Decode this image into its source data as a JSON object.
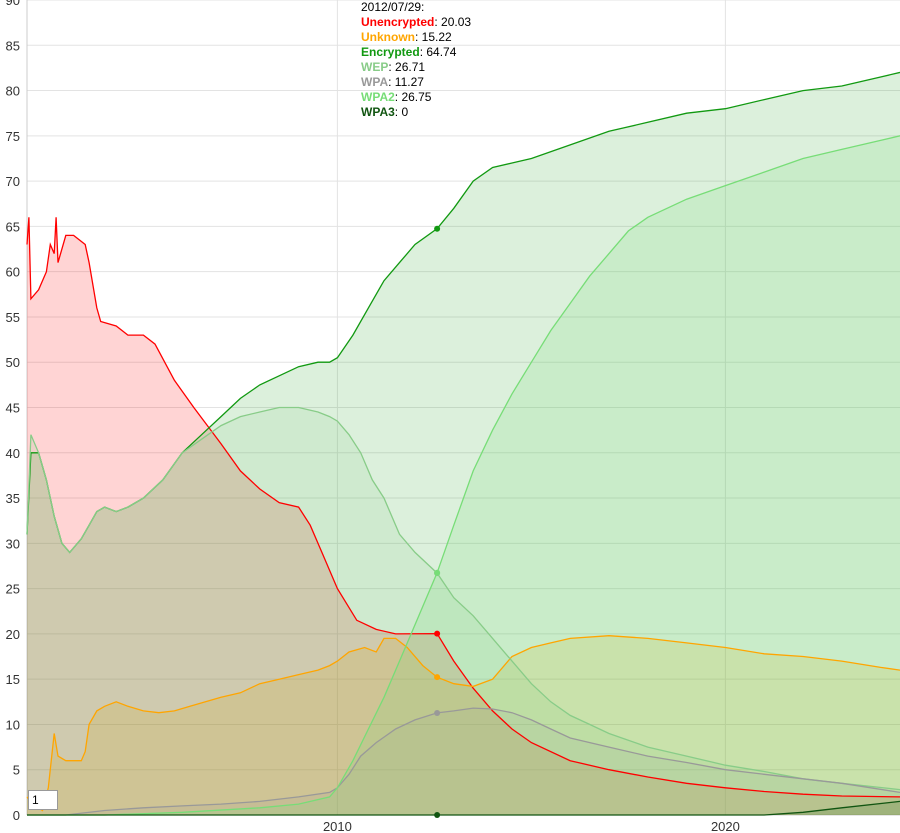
{
  "legend": {
    "date": "2012/07/29:",
    "rows": [
      {
        "name": "Unencrypted",
        "value": "20.03",
        "color": "#ff0000"
      },
      {
        "name": "Unknown",
        "value": "15.22",
        "color": "#ffa500"
      },
      {
        "name": "Encrypted",
        "value": "64.74",
        "color": "#119911"
      },
      {
        "name": "WEP",
        "value": "26.71",
        "color": "#88cc88"
      },
      {
        "name": "WPA",
        "value": "11.27",
        "color": "#999999"
      },
      {
        "name": "WPA2",
        "value": "26.75",
        "color": "#77dd77"
      },
      {
        "name": "WPA3",
        "value": "0",
        "color": "#115511"
      }
    ]
  },
  "roll_period": "1",
  "chart_data": {
    "type": "area",
    "xlim": [
      2002.0,
      2024.5
    ],
    "ylim": [
      0,
      90
    ],
    "x_ticks": [
      2010,
      2020
    ],
    "x_tick_labels": [
      "2010",
      "2020"
    ],
    "y_ticks": [
      0,
      5,
      10,
      15,
      20,
      25,
      30,
      35,
      40,
      45,
      50,
      55,
      60,
      65,
      70,
      75,
      80,
      85,
      90
    ],
    "grid": true,
    "highlight_x": 2012.57,
    "series": [
      {
        "name": "Unencrypted",
        "color": "#ff0000",
        "fill": "rgba(255,0,0,0.17)",
        "points": [
          [
            2002.0,
            63
          ],
          [
            2002.05,
            66
          ],
          [
            2002.1,
            57
          ],
          [
            2002.3,
            58
          ],
          [
            2002.5,
            60
          ],
          [
            2002.6,
            63
          ],
          [
            2002.7,
            62
          ],
          [
            2002.75,
            66
          ],
          [
            2002.8,
            61
          ],
          [
            2003.0,
            64
          ],
          [
            2003.2,
            64
          ],
          [
            2003.5,
            63
          ],
          [
            2003.6,
            61
          ],
          [
            2003.8,
            56
          ],
          [
            2003.9,
            54.5
          ],
          [
            2004.3,
            54
          ],
          [
            2004.6,
            53
          ],
          [
            2005.0,
            53
          ],
          [
            2005.3,
            52
          ],
          [
            2005.8,
            48
          ],
          [
            2006.3,
            45
          ],
          [
            2007.0,
            41
          ],
          [
            2007.5,
            38
          ],
          [
            2008.0,
            36
          ],
          [
            2008.5,
            34.5
          ],
          [
            2009.0,
            34
          ],
          [
            2009.3,
            32
          ],
          [
            2009.6,
            29
          ],
          [
            2010.0,
            25
          ],
          [
            2010.5,
            21.5
          ],
          [
            2011.0,
            20.5
          ],
          [
            2011.5,
            20
          ],
          [
            2012.57,
            20.03
          ],
          [
            2013.0,
            17
          ],
          [
            2013.5,
            14
          ],
          [
            2014.0,
            11.5
          ],
          [
            2014.5,
            9.5
          ],
          [
            2015.0,
            8
          ],
          [
            2016.0,
            6
          ],
          [
            2017.0,
            5
          ],
          [
            2018.0,
            4.2
          ],
          [
            2019.0,
            3.5
          ],
          [
            2020.0,
            3
          ],
          [
            2021.0,
            2.6
          ],
          [
            2022.0,
            2.3
          ],
          [
            2023.0,
            2.1
          ],
          [
            2024.5,
            2.0
          ]
        ]
      },
      {
        "name": "Unknown",
        "color": "#ffa500",
        "fill": "rgba(255,165,0,0.17)",
        "points": [
          [
            2002.0,
            2
          ],
          [
            2002.2,
            1
          ],
          [
            2002.4,
            0.5
          ],
          [
            2002.55,
            3
          ],
          [
            2002.7,
            9
          ],
          [
            2002.8,
            6.5
          ],
          [
            2003.0,
            6
          ],
          [
            2003.4,
            6
          ],
          [
            2003.5,
            7
          ],
          [
            2003.6,
            10
          ],
          [
            2003.8,
            11.5
          ],
          [
            2004.0,
            12
          ],
          [
            2004.3,
            12.5
          ],
          [
            2004.6,
            12
          ],
          [
            2005.0,
            11.5
          ],
          [
            2005.4,
            11.3
          ],
          [
            2005.8,
            11.5
          ],
          [
            2006.2,
            12
          ],
          [
            2006.6,
            12.5
          ],
          [
            2007.0,
            13
          ],
          [
            2007.5,
            13.5
          ],
          [
            2008.0,
            14.5
          ],
          [
            2008.5,
            15
          ],
          [
            2009.0,
            15.5
          ],
          [
            2009.5,
            16
          ],
          [
            2009.8,
            16.5
          ],
          [
            2010.0,
            17
          ],
          [
            2010.3,
            18
          ],
          [
            2010.7,
            18.5
          ],
          [
            2011.0,
            18
          ],
          [
            2011.2,
            19.5
          ],
          [
            2011.5,
            19.5
          ],
          [
            2011.8,
            18.5
          ],
          [
            2012.2,
            16.5
          ],
          [
            2012.57,
            15.22
          ],
          [
            2013.0,
            14.5
          ],
          [
            2013.5,
            14.2
          ],
          [
            2014.0,
            15
          ],
          [
            2014.5,
            17.5
          ],
          [
            2015.0,
            18.5
          ],
          [
            2015.5,
            19
          ],
          [
            2016.0,
            19.5
          ],
          [
            2017.0,
            19.8
          ],
          [
            2018.0,
            19.5
          ],
          [
            2019.0,
            19
          ],
          [
            2020.0,
            18.5
          ],
          [
            2021.0,
            17.8
          ],
          [
            2022.0,
            17.5
          ],
          [
            2023.0,
            17
          ],
          [
            2024.0,
            16.3
          ],
          [
            2024.5,
            16
          ]
        ]
      },
      {
        "name": "Encrypted",
        "color": "#119911",
        "fill": "rgba(17,153,17,0.15)",
        "points": [
          [
            2002.0,
            31
          ],
          [
            2002.1,
            40
          ],
          [
            2002.3,
            40
          ],
          [
            2002.5,
            37
          ],
          [
            2002.7,
            33
          ],
          [
            2002.9,
            30
          ],
          [
            2003.1,
            29
          ],
          [
            2003.4,
            30.5
          ],
          [
            2003.6,
            32
          ],
          [
            2003.8,
            33.5
          ],
          [
            2004.0,
            34
          ],
          [
            2004.3,
            33.5
          ],
          [
            2004.6,
            34
          ],
          [
            2005.0,
            35
          ],
          [
            2005.5,
            37
          ],
          [
            2006.0,
            40
          ],
          [
            2006.5,
            42
          ],
          [
            2007.0,
            44
          ],
          [
            2007.5,
            46
          ],
          [
            2008.0,
            47.5
          ],
          [
            2008.5,
            48.5
          ],
          [
            2009.0,
            49.5
          ],
          [
            2009.5,
            50
          ],
          [
            2009.8,
            50
          ],
          [
            2010.0,
            50.5
          ],
          [
            2010.4,
            53
          ],
          [
            2010.8,
            56
          ],
          [
            2011.2,
            59
          ],
          [
            2011.6,
            61
          ],
          [
            2012.0,
            63
          ],
          [
            2012.57,
            64.74
          ],
          [
            2013.0,
            67
          ],
          [
            2013.5,
            70
          ],
          [
            2014.0,
            71.5
          ],
          [
            2014.5,
            72
          ],
          [
            2015.0,
            72.5
          ],
          [
            2016.0,
            74
          ],
          [
            2017.0,
            75.5
          ],
          [
            2018.0,
            76.5
          ],
          [
            2019.0,
            77.5
          ],
          [
            2020.0,
            78
          ],
          [
            2021.0,
            79
          ],
          [
            2022.0,
            80
          ],
          [
            2023.0,
            80.5
          ],
          [
            2024.0,
            81.5
          ],
          [
            2024.5,
            82
          ]
        ]
      },
      {
        "name": "WEP",
        "color": "#88cc88",
        "fill": "rgba(136,204,136,0.15)",
        "points": [
          [
            2002.0,
            31
          ],
          [
            2002.1,
            42
          ],
          [
            2002.3,
            40
          ],
          [
            2002.5,
            37
          ],
          [
            2002.7,
            33
          ],
          [
            2002.9,
            30
          ],
          [
            2003.1,
            29
          ],
          [
            2003.4,
            30.5
          ],
          [
            2003.6,
            32
          ],
          [
            2003.8,
            33.5
          ],
          [
            2004.0,
            34
          ],
          [
            2004.3,
            33.5
          ],
          [
            2004.6,
            34
          ],
          [
            2005.0,
            35
          ],
          [
            2005.5,
            37
          ],
          [
            2006.0,
            40
          ],
          [
            2006.5,
            41.5
          ],
          [
            2007.0,
            43
          ],
          [
            2007.5,
            44
          ],
          [
            2008.0,
            44.5
          ],
          [
            2008.5,
            45
          ],
          [
            2009.0,
            45
          ],
          [
            2009.5,
            44.5
          ],
          [
            2009.8,
            44
          ],
          [
            2010.0,
            43.5
          ],
          [
            2010.3,
            42
          ],
          [
            2010.6,
            40
          ],
          [
            2010.9,
            37
          ],
          [
            2011.2,
            35
          ],
          [
            2011.6,
            31
          ],
          [
            2012.0,
            29
          ],
          [
            2012.57,
            26.71
          ],
          [
            2013.0,
            24
          ],
          [
            2013.5,
            22
          ],
          [
            2014.0,
            19.5
          ],
          [
            2014.5,
            17
          ],
          [
            2015.0,
            14.5
          ],
          [
            2015.5,
            12.5
          ],
          [
            2016.0,
            11
          ],
          [
            2016.5,
            10
          ],
          [
            2017.0,
            9
          ],
          [
            2018.0,
            7.5
          ],
          [
            2019.0,
            6.5
          ],
          [
            2020.0,
            5.5
          ],
          [
            2021.0,
            4.8
          ],
          [
            2022.0,
            4
          ],
          [
            2023.0,
            3.5
          ],
          [
            2024.5,
            2.8
          ]
        ]
      },
      {
        "name": "WPA",
        "color": "#999999",
        "fill": "rgba(153,153,153,0.15)",
        "points": [
          [
            2002.0,
            0
          ],
          [
            2003.0,
            0
          ],
          [
            2004.0,
            0.5
          ],
          [
            2005.0,
            0.8
          ],
          [
            2006.0,
            1
          ],
          [
            2007.0,
            1.2
          ],
          [
            2008.0,
            1.5
          ],
          [
            2009.0,
            2
          ],
          [
            2009.8,
            2.5
          ],
          [
            2010.0,
            3
          ],
          [
            2010.3,
            4.5
          ],
          [
            2010.6,
            6.5
          ],
          [
            2011.0,
            8
          ],
          [
            2011.5,
            9.5
          ],
          [
            2012.0,
            10.5
          ],
          [
            2012.57,
            11.27
          ],
          [
            2013.0,
            11.5
          ],
          [
            2013.5,
            11.8
          ],
          [
            2014.0,
            11.7
          ],
          [
            2014.5,
            11.3
          ],
          [
            2015.0,
            10.5
          ],
          [
            2015.5,
            9.5
          ],
          [
            2016.0,
            8.5
          ],
          [
            2017.0,
            7.5
          ],
          [
            2018.0,
            6.5
          ],
          [
            2019.0,
            5.8
          ],
          [
            2020.0,
            5
          ],
          [
            2021.0,
            4.5
          ],
          [
            2022.0,
            4
          ],
          [
            2023.0,
            3.5
          ],
          [
            2024.5,
            2.5
          ]
        ]
      },
      {
        "name": "WPA2",
        "color": "#77dd77",
        "fill": "rgba(119,221,119,0.18)",
        "points": [
          [
            2002.0,
            0
          ],
          [
            2004.0,
            0
          ],
          [
            2006.0,
            0.3
          ],
          [
            2008.0,
            0.8
          ],
          [
            2009.0,
            1.2
          ],
          [
            2009.8,
            2
          ],
          [
            2010.0,
            3
          ],
          [
            2010.4,
            6
          ],
          [
            2010.8,
            9.5
          ],
          [
            2011.2,
            13
          ],
          [
            2011.6,
            17
          ],
          [
            2012.0,
            21
          ],
          [
            2012.57,
            26.75
          ],
          [
            2013.0,
            32
          ],
          [
            2013.5,
            38
          ],
          [
            2014.0,
            42.5
          ],
          [
            2014.5,
            46.5
          ],
          [
            2015.0,
            50
          ],
          [
            2015.5,
            53.5
          ],
          [
            2016.0,
            56.5
          ],
          [
            2016.5,
            59.5
          ],
          [
            2017.0,
            62
          ],
          [
            2017.5,
            64.5
          ],
          [
            2018.0,
            66
          ],
          [
            2019.0,
            68
          ],
          [
            2020.0,
            69.5
          ],
          [
            2021.0,
            71
          ],
          [
            2022.0,
            72.5
          ],
          [
            2023.0,
            73.5
          ],
          [
            2024.0,
            74.5
          ],
          [
            2024.5,
            75
          ]
        ]
      },
      {
        "name": "WPA3",
        "color": "#115511",
        "fill": "rgba(17,85,17,0.15)",
        "points": [
          [
            2002.0,
            0
          ],
          [
            2012.57,
            0
          ],
          [
            2018.0,
            0
          ],
          [
            2021.0,
            0
          ],
          [
            2022.0,
            0.3
          ],
          [
            2023.0,
            0.8
          ],
          [
            2024.5,
            1.5
          ]
        ]
      }
    ]
  }
}
